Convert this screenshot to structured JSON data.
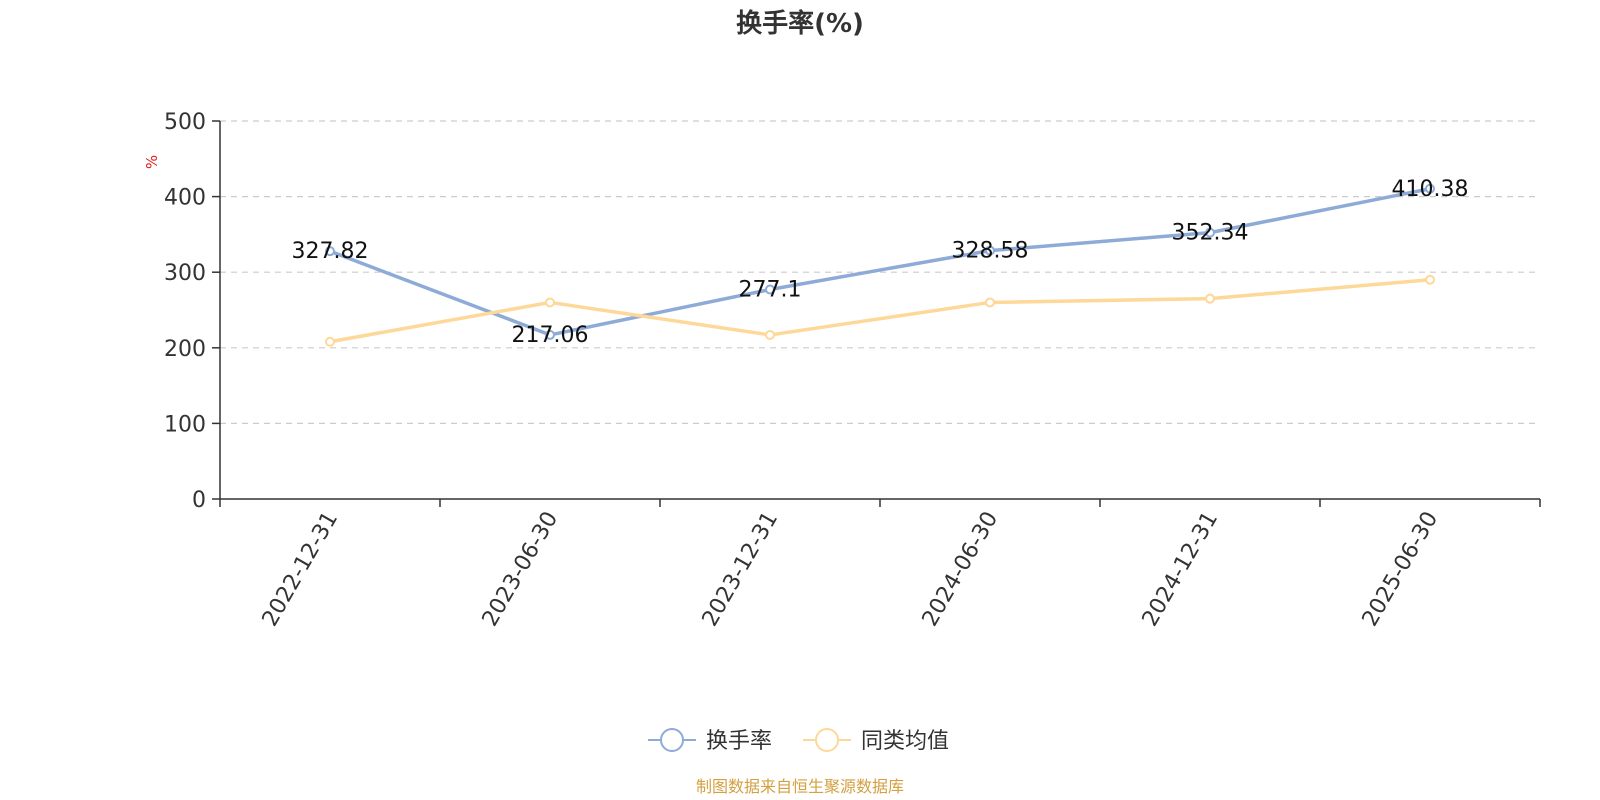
{
  "chart_data": {
    "type": "line",
    "title": "换手率(%)",
    "xlabel": "",
    "ylabel": "%",
    "categories": [
      "2022-12-31",
      "2023-06-30",
      "2023-12-31",
      "2024-06-30",
      "2024-12-31",
      "2025-06-30"
    ],
    "series": [
      {
        "name": "换手率",
        "values": [
          327.82,
          217.06,
          277.1,
          328.58,
          352.34,
          410.38
        ],
        "labels": [
          "327.82",
          "217.06",
          "277.1",
          "328.58",
          "352.34",
          "410.38"
        ],
        "color": "#8eabd8",
        "show_labels": true
      },
      {
        "name": "同类均值",
        "values": [
          208,
          260,
          217,
          260,
          265,
          290
        ],
        "color": "#fdd898",
        "show_labels": false
      }
    ],
    "ylim": [
      0,
      500
    ],
    "yticks": [
      "0",
      "100",
      "200",
      "300",
      "400",
      "500"
    ],
    "grid": true,
    "legend_position": "bottom-center"
  },
  "source_text": "制图数据来自恒生聚源数据库",
  "colors": {
    "axis": "#333333",
    "grid": "#cccccc",
    "unit_label": "#e02020",
    "source_text": "#d4a040"
  }
}
